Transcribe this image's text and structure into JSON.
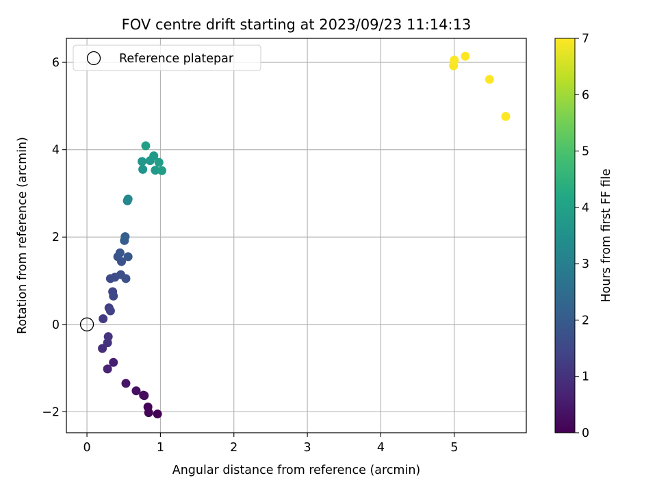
{
  "chart_data": {
    "type": "scatter",
    "title": "FOV centre drift starting at 2023/09/23 11:14:13",
    "xlabel": "Angular distance from reference (arcmin)",
    "ylabel": "Rotation from reference (arcmin)",
    "xlim": [
      -0.28,
      5.98
    ],
    "ylim": [
      -2.48,
      6.55
    ],
    "xticks": [
      0,
      1,
      2,
      3,
      4,
      5
    ],
    "xtick_labels": [
      "0",
      "1",
      "2",
      "3",
      "4",
      "5"
    ],
    "yticks": [
      -2,
      0,
      2,
      4,
      6
    ],
    "ytick_labels": [
      "−2",
      "0",
      "2",
      "4",
      "6"
    ],
    "grid": true,
    "legend": {
      "placement": "top-left",
      "entries": [
        "Reference platepar"
      ]
    },
    "reference_point": {
      "name": "Reference platepar",
      "x": 0,
      "y": 0,
      "marker": "open-circle"
    },
    "colorbar": {
      "label": "Hours from first FF file",
      "colormap": "viridis",
      "range": [
        0,
        7
      ],
      "ticks": [
        0,
        1,
        2,
        3,
        4,
        5,
        6,
        7
      ],
      "tick_labels": [
        "0",
        "1",
        "2",
        "3",
        "4",
        "5",
        "6",
        "7"
      ]
    },
    "points": [
      {
        "x": 0.96,
        "y": -2.05,
        "h": 0.0
      },
      {
        "x": 0.84,
        "y": -2.02,
        "h": 0.05
      },
      {
        "x": 0.83,
        "y": -1.89,
        "h": 0.1
      },
      {
        "x": 0.78,
        "y": -1.63,
        "h": 0.15
      },
      {
        "x": 0.77,
        "y": -1.62,
        "h": 0.2
      },
      {
        "x": 0.67,
        "y": -1.52,
        "h": 0.3
      },
      {
        "x": 0.53,
        "y": -1.35,
        "h": 0.4
      },
      {
        "x": 0.36,
        "y": -0.87,
        "h": 0.6
      },
      {
        "x": 0.28,
        "y": -1.02,
        "h": 0.7
      },
      {
        "x": 0.21,
        "y": -0.55,
        "h": 0.9
      },
      {
        "x": 0.28,
        "y": -0.42,
        "h": 1.0
      },
      {
        "x": 0.29,
        "y": -0.28,
        "h": 1.05
      },
      {
        "x": 0.22,
        "y": 0.13,
        "h": 1.2
      },
      {
        "x": 0.3,
        "y": 0.38,
        "h": 1.3
      },
      {
        "x": 0.32,
        "y": 0.31,
        "h": 1.35
      },
      {
        "x": 0.35,
        "y": 0.75,
        "h": 1.45
      },
      {
        "x": 0.36,
        "y": 0.65,
        "h": 1.5
      },
      {
        "x": 0.32,
        "y": 1.05,
        "h": 1.55
      },
      {
        "x": 0.38,
        "y": 1.08,
        "h": 1.6
      },
      {
        "x": 0.46,
        "y": 1.14,
        "h": 1.65
      },
      {
        "x": 0.53,
        "y": 1.05,
        "h": 1.7
      },
      {
        "x": 0.47,
        "y": 1.44,
        "h": 1.75
      },
      {
        "x": 0.42,
        "y": 1.55,
        "h": 1.8
      },
      {
        "x": 0.45,
        "y": 1.64,
        "h": 1.85
      },
      {
        "x": 0.56,
        "y": 1.55,
        "h": 1.9
      },
      {
        "x": 0.51,
        "y": 1.92,
        "h": 2.05
      },
      {
        "x": 0.52,
        "y": 2.01,
        "h": 2.1
      },
      {
        "x": 0.55,
        "y": 2.83,
        "h": 3.2
      },
      {
        "x": 0.56,
        "y": 2.87,
        "h": 3.25
      },
      {
        "x": 0.76,
        "y": 3.55,
        "h": 3.6
      },
      {
        "x": 0.75,
        "y": 3.73,
        "h": 3.65
      },
      {
        "x": 0.86,
        "y": 3.75,
        "h": 3.7
      },
      {
        "x": 0.91,
        "y": 3.86,
        "h": 3.75
      },
      {
        "x": 0.93,
        "y": 3.53,
        "h": 3.8
      },
      {
        "x": 0.98,
        "y": 3.71,
        "h": 3.85
      },
      {
        "x": 1.02,
        "y": 3.52,
        "h": 3.9
      },
      {
        "x": 0.8,
        "y": 4.09,
        "h": 3.95
      },
      {
        "x": 4.99,
        "y": 5.92,
        "h": 6.95
      },
      {
        "x": 5.0,
        "y": 6.05,
        "h": 6.97
      },
      {
        "x": 5.15,
        "y": 6.14,
        "h": 7.0
      },
      {
        "x": 5.48,
        "y": 5.61,
        "h": 7.0
      },
      {
        "x": 5.7,
        "y": 4.76,
        "h": 7.0
      }
    ]
  }
}
